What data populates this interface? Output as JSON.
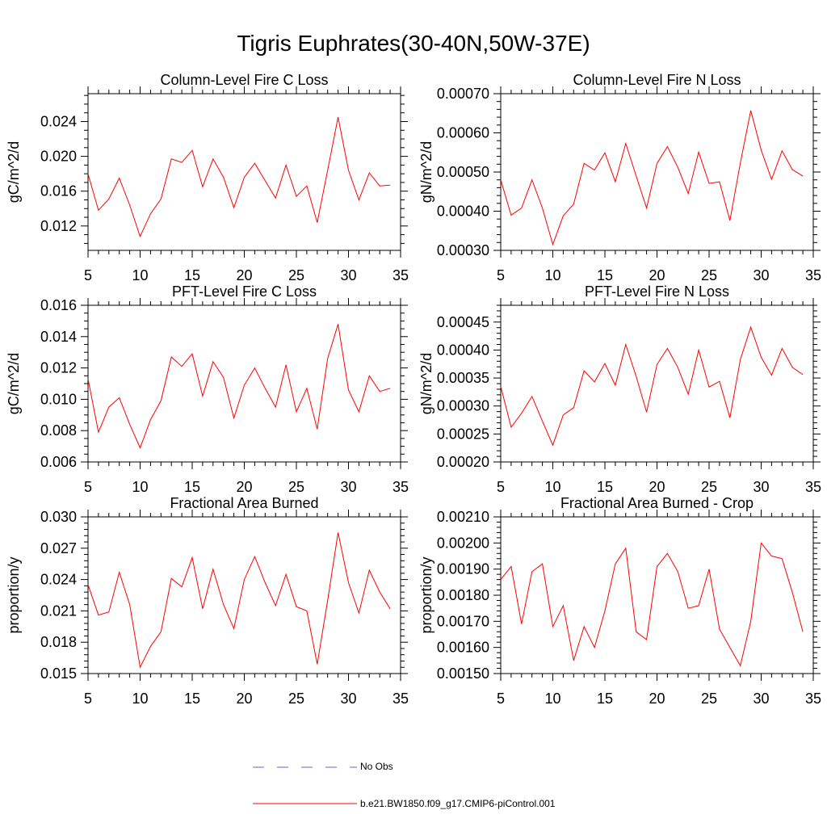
{
  "page": {
    "title": "Tigris Euphrates(30-40N,50W-37E)"
  },
  "legend": {
    "items": [
      {
        "label": "No Obs",
        "color": "#6666cc",
        "dash": "dashed"
      },
      {
        "label": "b.e21.BW1850.f09_g17.CMIP6-piControl.001",
        "color": "#ff0000",
        "dash": "solid"
      }
    ]
  },
  "chart_data": [
    {
      "type": "line",
      "title": "Column-Level Fire C Loss",
      "ylabel": "gC/m^2/d",
      "xlabel": "",
      "xlim": [
        5,
        35
      ],
      "ylim": [
        0.0092,
        0.0272
      ],
      "xticks": [
        5,
        10,
        15,
        20,
        25,
        30,
        35
      ],
      "xtick_labels": [
        "5",
        "10",
        "15",
        "20",
        "25",
        "30",
        "35"
      ],
      "yticks": [
        0.012,
        0.016,
        0.02,
        0.024
      ],
      "ytick_labels": [
        "0.012",
        "0.016",
        "0.020",
        "0.024"
      ],
      "yminor_step": 0.001,
      "series": [
        {
          "name": "b.e21.BW1850.f09_g17.CMIP6-piControl.001",
          "color": "#ff0000",
          "x": [
            5,
            6,
            7,
            8,
            9,
            10,
            11,
            12,
            13,
            14,
            15,
            16,
            17,
            18,
            19,
            20,
            21,
            22,
            23,
            24,
            25,
            26,
            27,
            28,
            29,
            30,
            31,
            32,
            33,
            34
          ],
          "values": [
            0.018,
            0.0138,
            0.0151,
            0.0175,
            0.0144,
            0.0108,
            0.0134,
            0.0151,
            0.0197,
            0.0193,
            0.0207,
            0.0165,
            0.0197,
            0.0176,
            0.0141,
            0.0176,
            0.0192,
            0.0172,
            0.0152,
            0.019,
            0.0154,
            0.0166,
            0.0124,
            0.0184,
            0.0245,
            0.0184,
            0.015,
            0.0181,
            0.0166,
            0.0167
          ]
        }
      ]
    },
    {
      "type": "line",
      "title": "Column-Level Fire N Loss",
      "ylabel": "gN/m^2/d",
      "xlabel": "",
      "xlim": [
        5,
        35
      ],
      "ylim": [
        0.0003,
        0.0007
      ],
      "xticks": [
        5,
        10,
        15,
        20,
        25,
        30,
        35
      ],
      "xtick_labels": [
        "5",
        "10",
        "15",
        "20",
        "25",
        "30",
        "35"
      ],
      "yticks": [
        0.0003,
        0.0004,
        0.0005,
        0.0006,
        0.0007
      ],
      "ytick_labels": [
        "0.00030",
        "0.00040",
        "0.00050",
        "0.00060",
        "0.00070"
      ],
      "yminor_step": 2e-05,
      "series": [
        {
          "name": "b.e21.BW1850.f09_g17.CMIP6-piControl.001",
          "color": "#ff0000",
          "x": [
            5,
            6,
            7,
            8,
            9,
            10,
            11,
            12,
            13,
            14,
            15,
            16,
            17,
            18,
            19,
            20,
            21,
            22,
            23,
            24,
            25,
            26,
            27,
            28,
            29,
            30,
            31,
            32,
            33,
            34
          ],
          "values": [
            0.00048,
            0.00039,
            0.000408,
            0.00048,
            0.000408,
            0.000315,
            0.000388,
            0.000418,
            0.000522,
            0.000505,
            0.000549,
            0.000475,
            0.000573,
            0.00049,
            0.000408,
            0.000522,
            0.000565,
            0.000512,
            0.000445,
            0.000551,
            0.000471,
            0.000475,
            0.000376,
            0.000523,
            0.000657,
            0.000556,
            0.000481,
            0.000554,
            0.000506,
            0.00049
          ]
        }
      ]
    },
    {
      "type": "line",
      "title": "PFT-Level Fire C Loss",
      "ylabel": "gC/m^2/d",
      "xlabel": "",
      "xlim": [
        5,
        35
      ],
      "ylim": [
        0.006,
        0.016
      ],
      "xticks": [
        5,
        10,
        15,
        20,
        25,
        30,
        35
      ],
      "xtick_labels": [
        "5",
        "10",
        "15",
        "20",
        "25",
        "30",
        "35"
      ],
      "yticks": [
        0.006,
        0.008,
        0.01,
        0.012,
        0.014,
        0.016
      ],
      "ytick_labels": [
        "0.006",
        "0.008",
        "0.010",
        "0.012",
        "0.014",
        "0.016"
      ],
      "yminor_step": 0.0005,
      "series": [
        {
          "name": "b.e21.BW1850.f09_g17.CMIP6-piControl.001",
          "color": "#ff0000",
          "x": [
            5,
            6,
            7,
            8,
            9,
            10,
            11,
            12,
            13,
            14,
            15,
            16,
            17,
            18,
            19,
            20,
            21,
            22,
            23,
            24,
            25,
            26,
            27,
            28,
            29,
            30,
            31,
            32,
            33,
            34
          ],
          "values": [
            0.0113,
            0.0079,
            0.0095,
            0.0101,
            0.0084,
            0.0069,
            0.0087,
            0.0099,
            0.0127,
            0.0121,
            0.0129,
            0.0102,
            0.0124,
            0.0114,
            0.0088,
            0.0109,
            0.012,
            0.0107,
            0.0095,
            0.0122,
            0.0092,
            0.0107,
            0.0081,
            0.0126,
            0.0148,
            0.0106,
            0.0092,
            0.0115,
            0.0105,
            0.0107
          ]
        }
      ]
    },
    {
      "type": "line",
      "title": "PFT-Level Fire N Loss",
      "ylabel": "gN/m^2/d",
      "xlabel": "",
      "xlim": [
        5,
        35
      ],
      "ylim": [
        0.0002,
        0.00048
      ],
      "xticks": [
        5,
        10,
        15,
        20,
        25,
        30,
        35
      ],
      "xtick_labels": [
        "5",
        "10",
        "15",
        "20",
        "25",
        "30",
        "35"
      ],
      "yticks": [
        0.0002,
        0.00025,
        0.0003,
        0.00035,
        0.0004,
        0.00045
      ],
      "ytick_labels": [
        "0.00020",
        "0.00025",
        "0.00030",
        "0.00035",
        "0.00040",
        "0.00045"
      ],
      "yminor_step": 1e-05,
      "series": [
        {
          "name": "b.e21.BW1850.f09_g17.CMIP6-piControl.001",
          "color": "#ff0000",
          "x": [
            5,
            6,
            7,
            8,
            9,
            10,
            11,
            12,
            13,
            14,
            15,
            16,
            17,
            18,
            19,
            20,
            21,
            22,
            23,
            24,
            25,
            26,
            27,
            28,
            29,
            30,
            31,
            32,
            33,
            34
          ],
          "values": [
            0.000335,
            0.000262,
            0.000287,
            0.000317,
            0.000273,
            0.00023,
            0.000284,
            0.000297,
            0.000363,
            0.000343,
            0.000376,
            0.000337,
            0.00041,
            0.000353,
            0.000289,
            0.000374,
            0.000403,
            0.000369,
            0.000321,
            0.0004,
            0.000334,
            0.000344,
            0.000279,
            0.000383,
            0.000441,
            0.000387,
            0.000355,
            0.000403,
            0.000369,
            0.000356
          ]
        }
      ]
    },
    {
      "type": "line",
      "title": "Fractional Area Burned",
      "ylabel": "proportion/y",
      "xlabel": "",
      "xlim": [
        5,
        35
      ],
      "ylim": [
        0.015,
        0.03
      ],
      "xticks": [
        5,
        10,
        15,
        20,
        25,
        30,
        35
      ],
      "xtick_labels": [
        "5",
        "10",
        "15",
        "20",
        "25",
        "30",
        "35"
      ],
      "yticks": [
        0.015,
        0.018,
        0.021,
        0.024,
        0.027,
        0.03
      ],
      "ytick_labels": [
        "0.015",
        "0.018",
        "0.021",
        "0.024",
        "0.027",
        "0.030"
      ],
      "yminor_step": 0.0006,
      "series": [
        {
          "name": "b.e21.BW1850.f09_g17.CMIP6-piControl.001",
          "color": "#ff0000",
          "x": [
            5,
            6,
            7,
            8,
            9,
            10,
            11,
            12,
            13,
            14,
            15,
            16,
            17,
            18,
            19,
            20,
            21,
            22,
            23,
            24,
            25,
            26,
            27,
            28,
            29,
            30,
            31,
            32,
            33,
            34
          ],
          "values": [
            0.0235,
            0.0206,
            0.0209,
            0.0247,
            0.0216,
            0.0156,
            0.0176,
            0.019,
            0.0241,
            0.0233,
            0.0261,
            0.0212,
            0.025,
            0.0216,
            0.0193,
            0.024,
            0.0262,
            0.0237,
            0.0215,
            0.0245,
            0.0214,
            0.021,
            0.0159,
            0.022,
            0.0285,
            0.0237,
            0.0208,
            0.0249,
            0.0228,
            0.0212
          ]
        }
      ]
    },
    {
      "type": "line",
      "title": "Fractional Area Burned - Crop",
      "ylabel": "proportion/y",
      "xlabel": "",
      "xlim": [
        5,
        35
      ],
      "ylim": [
        0.0015,
        0.0021
      ],
      "xticks": [
        5,
        10,
        15,
        20,
        25,
        30,
        35
      ],
      "xtick_labels": [
        "5",
        "10",
        "15",
        "20",
        "25",
        "30",
        "35"
      ],
      "yticks": [
        0.0015,
        0.0016,
        0.0017,
        0.0018,
        0.0019,
        0.002,
        0.0021
      ],
      "ytick_labels": [
        "0.00150",
        "0.00160",
        "0.00170",
        "0.00180",
        "0.00190",
        "0.00200",
        "0.00210"
      ],
      "yminor_step": 2e-05,
      "series": [
        {
          "name": "b.e21.BW1850.f09_g17.CMIP6-piControl.001",
          "color": "#ff0000",
          "x": [
            5,
            6,
            7,
            8,
            9,
            10,
            11,
            12,
            13,
            14,
            15,
            16,
            17,
            18,
            19,
            20,
            21,
            22,
            23,
            24,
            25,
            26,
            27,
            28,
            29,
            30,
            31,
            32,
            33,
            34
          ],
          "values": [
            0.00186,
            0.00191,
            0.00169,
            0.00189,
            0.00192,
            0.00168,
            0.00176,
            0.00155,
            0.00168,
            0.0016,
            0.00174,
            0.00192,
            0.00198,
            0.00166,
            0.00163,
            0.00191,
            0.00196,
            0.00189,
            0.00175,
            0.00176,
            0.0019,
            0.00167,
            0.0016,
            0.00153,
            0.0017,
            0.002,
            0.00195,
            0.00194,
            0.00181,
            0.00166
          ]
        }
      ]
    }
  ]
}
